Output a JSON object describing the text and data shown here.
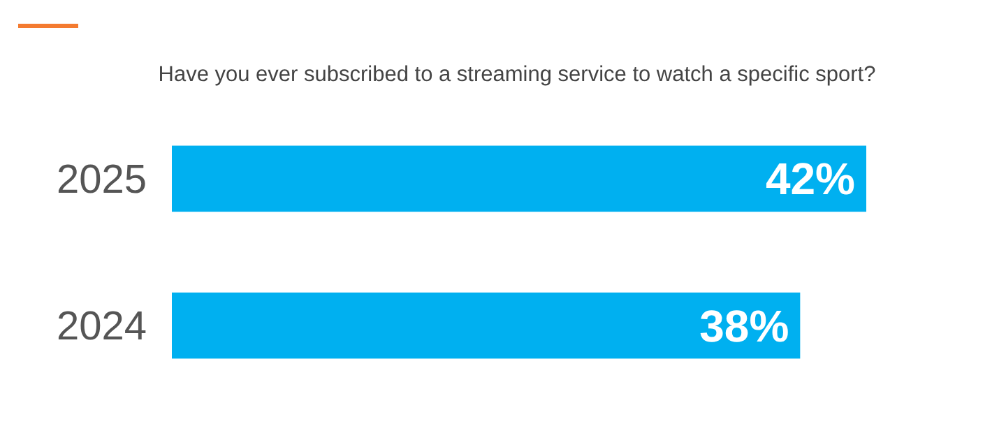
{
  "chart_data": {
    "type": "bar",
    "orientation": "horizontal",
    "title": "Have you ever subscribed to a streaming service to watch a specific sport?",
    "categories": [
      "2025",
      "2024"
    ],
    "values": [
      42,
      38
    ],
    "value_labels": [
      "42%",
      "38%"
    ],
    "color": "#00b0f0"
  }
}
